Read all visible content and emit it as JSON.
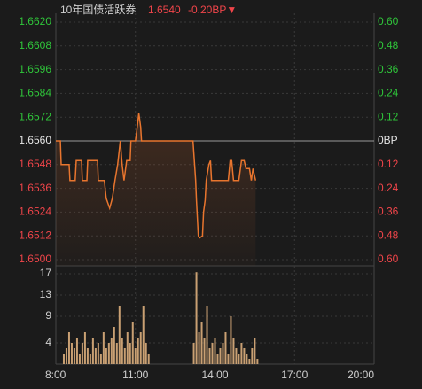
{
  "chart_data": [
    {
      "type": "line",
      "title": "10年国债活跃券",
      "price": "1.6540",
      "change": "-0.20BP▼",
      "up_color": "#2fc53a",
      "down_color": "#f0454a",
      "flat_color": "#e6e6e6",
      "xlim": [
        8,
        20
      ],
      "ylim": [
        1.65,
        1.662
      ],
      "yticks": [
        {
          "value": 1.662,
          "label": "1.6620"
        },
        1.6608,
        1.6596,
        1.6584,
        1.6572,
        {
          "value": 1.656,
          "label": "1.6560"
        },
        1.6548,
        1.6536,
        1.6524,
        1.6512,
        {
          "value": 1.65,
          "label": "1.6500"
        }
      ],
      "y2lim": [
        0.6,
        -0.6
      ],
      "y2ticks": [
        {
          "value": -0.6,
          "label": "0.60"
        },
        {
          "value": -0.48,
          "label": "0.48"
        },
        {
          "value": -0.36,
          "label": "0.36"
        },
        {
          "value": -0.24,
          "label": "0.24"
        },
        {
          "value": -0.12,
          "label": "0.12"
        },
        {
          "value": 0,
          "label": "0BP"
        },
        0.12,
        0.24,
        0.36,
        0.48,
        {
          "value": 0.6,
          "label": "0.60"
        }
      ],
      "grid": true,
      "series": [
        {
          "color": "#e8752e",
          "x": [
            8.0,
            8.17,
            8.2,
            8.5,
            8.53,
            8.73,
            8.77,
            8.97,
            9.0,
            9.17,
            9.2,
            9.57,
            9.6,
            9.83,
            9.9,
            10.03,
            10.13,
            10.23,
            10.33,
            10.43,
            10.5,
            10.57,
            10.67,
            10.8,
            10.83,
            11.0,
            11.07,
            11.13,
            11.2,
            11.23,
            11.4,
            13.17,
            13.23,
            13.27,
            13.3,
            13.37,
            13.43,
            13.53,
            13.57,
            13.63,
            13.67,
            13.77,
            13.83,
            13.87,
            14.5,
            14.57,
            14.63,
            14.7,
            14.9,
            15.0,
            15.1,
            15.17,
            15.3,
            15.37,
            15.43,
            15.53
          ],
          "values": [
            1.656,
            1.656,
            1.6548,
            1.6548,
            1.654,
            1.654,
            1.655,
            1.655,
            1.654,
            1.654,
            1.655,
            1.655,
            1.654,
            1.654,
            1.6531,
            1.6526,
            1.6531,
            1.654,
            1.6548,
            1.656,
            1.6548,
            1.654,
            1.655,
            1.655,
            1.656,
            1.656,
            1.6567,
            1.6574,
            1.6567,
            1.656,
            1.656,
            1.656,
            1.6548,
            1.654,
            1.653,
            1.6512,
            1.6511,
            1.6512,
            1.6524,
            1.653,
            1.654,
            1.6548,
            1.655,
            1.654,
            1.654,
            1.655,
            1.655,
            1.654,
            1.654,
            1.655,
            1.655,
            1.6546,
            1.6546,
            1.654,
            1.6546,
            1.654
          ]
        }
      ]
    },
    {
      "type": "bar",
      "color": "#c9a073",
      "xlim": [
        8,
        20
      ],
      "ylim": [
        0,
        18
      ],
      "xticks": [
        {
          "value": 8,
          "label": "8:00"
        },
        {
          "value": 11,
          "label": "11:00"
        },
        {
          "value": 14,
          "label": "14:00"
        },
        {
          "value": 17,
          "label": "17:00"
        },
        {
          "value": 20,
          "label": "20:00"
        }
      ],
      "yticks": [
        17,
        13,
        9,
        4
      ],
      "grid": true,
      "x": [
        8.3,
        8.4,
        8.5,
        8.6,
        8.7,
        8.8,
        8.9,
        9.0,
        9.1,
        9.2,
        9.3,
        9.4,
        9.5,
        9.6,
        9.7,
        9.8,
        9.9,
        10.0,
        10.1,
        10.2,
        10.3,
        10.4,
        10.5,
        10.6,
        10.7,
        10.8,
        10.9,
        11.0,
        11.1,
        11.2,
        11.3,
        11.4,
        11.5,
        13.2,
        13.3,
        13.4,
        13.5,
        13.6,
        13.7,
        13.8,
        13.9,
        14.0,
        14.1,
        14.2,
        14.3,
        14.4,
        14.5,
        14.6,
        14.7,
        14.8,
        14.9,
        15.0,
        15.1,
        15.2,
        15.3,
        15.4,
        15.5,
        15.6
      ],
      "values": [
        2,
        3,
        6,
        4,
        3,
        5,
        2,
        4,
        6,
        3,
        2,
        5,
        3,
        4,
        2,
        6,
        3,
        4,
        5,
        7,
        4,
        11,
        5,
        3,
        6,
        4,
        8,
        3,
        5,
        6,
        11,
        4,
        2,
        4,
        17.3,
        6,
        8,
        5,
        11,
        3,
        4,
        5,
        2,
        3,
        4,
        6,
        2,
        9,
        5,
        3,
        2,
        4,
        3,
        2,
        1,
        3,
        5,
        1
      ]
    }
  ]
}
